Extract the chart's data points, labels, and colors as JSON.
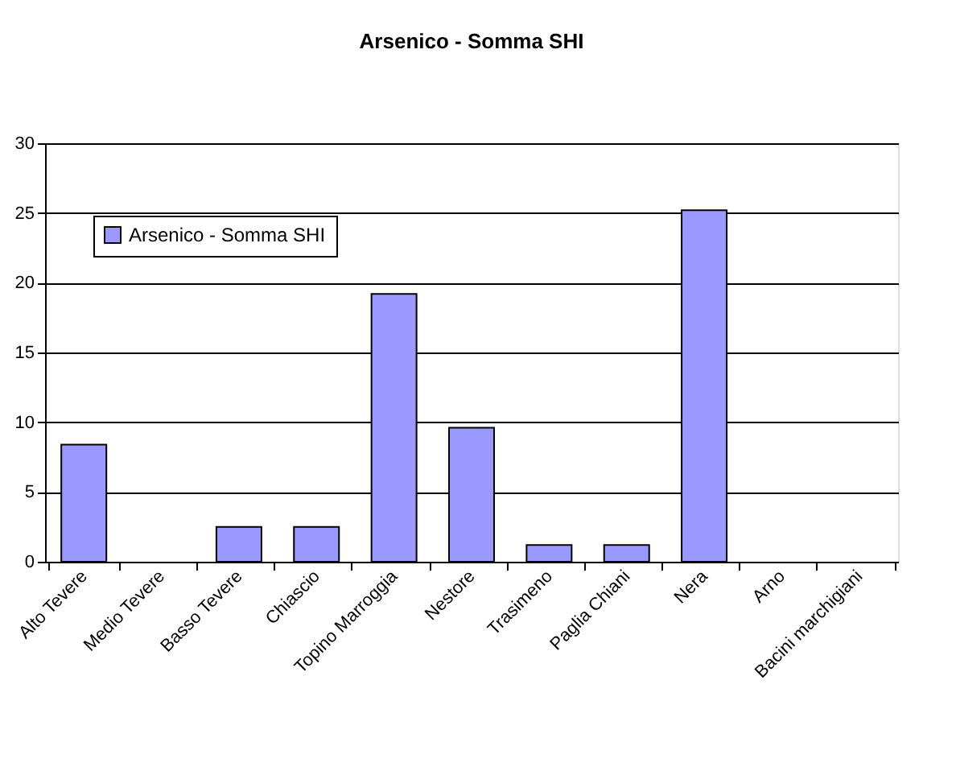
{
  "chart_data": {
    "type": "bar",
    "title": "Arsenico - Somma SHI",
    "categories": [
      "Alto Tevere",
      "Medio Tevere",
      "Basso Tevere",
      "Chiascio",
      "Topino Marroggia",
      "Nestore",
      "Trasimeno",
      "Paglia Chiani",
      "Nera",
      "Arno",
      "Bacini marchigiani"
    ],
    "series": [
      {
        "name": "Arsenico - Somma SHI",
        "color": "#9999ff",
        "values": [
          8.4,
          null,
          2.5,
          2.5,
          19.2,
          9.6,
          1.2,
          1.2,
          25.2,
          null,
          null
        ]
      }
    ],
    "ylim": [
      0,
      30
    ],
    "yticks": [
      0,
      5,
      10,
      15,
      20,
      25,
      30
    ],
    "grid": "y",
    "legend": "top left"
  }
}
